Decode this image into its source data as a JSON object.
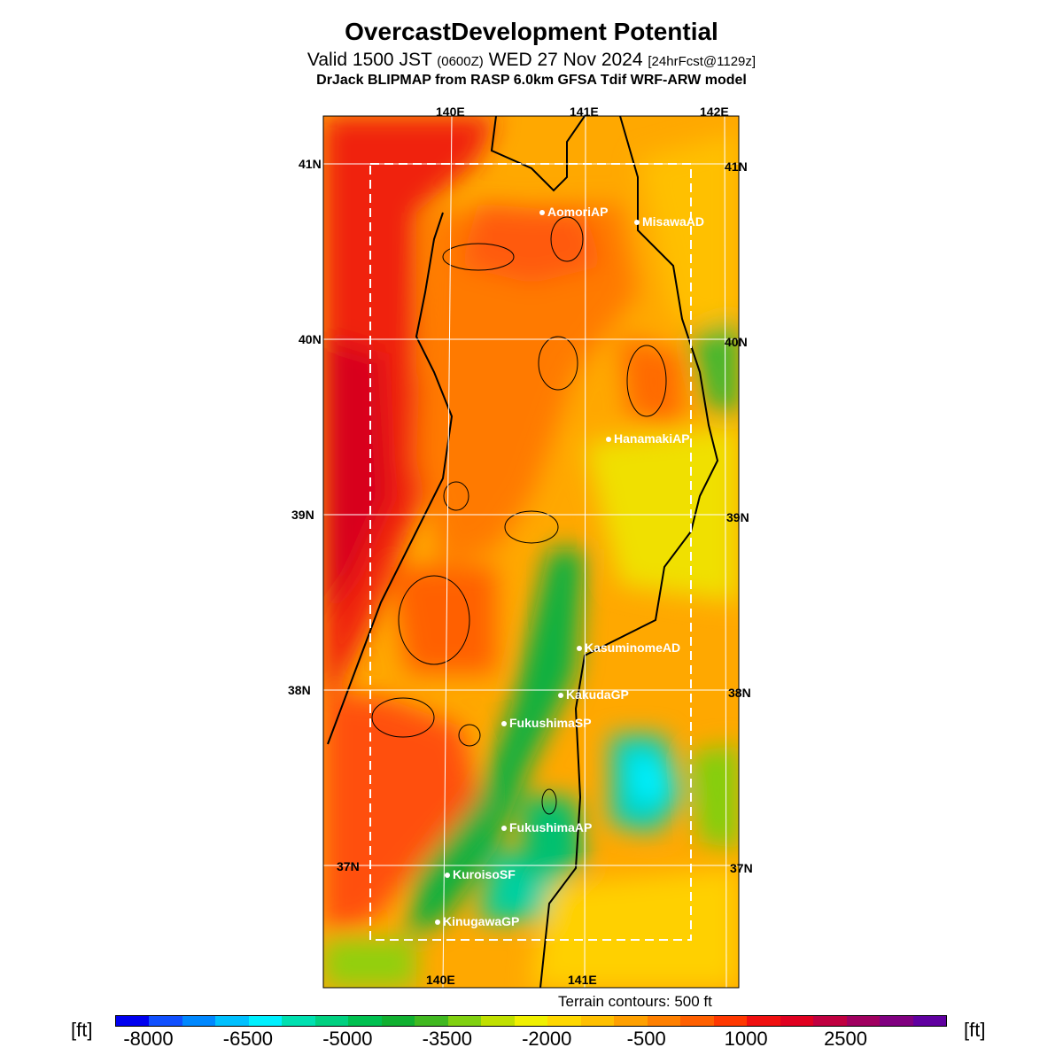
{
  "title": "OvercastDevelopment Potential",
  "subtitle": {
    "prefix": "Valid 1500 JST",
    "utc": "(0600Z)",
    "date": "WED 27 Nov 2024",
    "fcst": "[24hrFcst@1129z]"
  },
  "model_line": "DrJack BLIPMAP from RASP 6.0km GFSA Tdif WRF-ARW model",
  "axes": {
    "lon_top": [
      "140E",
      "141E",
      "142E"
    ],
    "lon_bottom": [
      "140E",
      "141E"
    ],
    "lat_left": [
      "41N",
      "40N",
      "39N",
      "38N",
      "37N"
    ],
    "lat_right": [
      "41N",
      "40N",
      "39N",
      "38N",
      "37N"
    ]
  },
  "stations": [
    {
      "name": "AomoriAP"
    },
    {
      "name": "MisawaAD"
    },
    {
      "name": "HanamakiAP"
    },
    {
      "name": "KasuminomeAD"
    },
    {
      "name": "KakudaGP"
    },
    {
      "name": "FukushimaSP"
    },
    {
      "name": "FukushimaAP"
    },
    {
      "name": "KuroisoSF"
    },
    {
      "name": "KinugawaGP"
    }
  ],
  "terrain_note": "Terrain contours: 500 ft",
  "colorbar": {
    "unit_left": "[ft]",
    "unit_right": "[ft]",
    "tick_labels": [
      "-8000",
      "-6500",
      "-5000",
      "-3500",
      "-2000",
      "-500",
      "1000",
      "2500"
    ],
    "colors": [
      "#0000f0",
      "#1050ff",
      "#0088ff",
      "#00c0ff",
      "#00f0ff",
      "#00e0b0",
      "#00d080",
      "#00c050",
      "#10b030",
      "#40b820",
      "#80d010",
      "#c0e000",
      "#f0f000",
      "#ffd800",
      "#ffc000",
      "#ffa000",
      "#ff8000",
      "#ff6000",
      "#ff3800",
      "#f01010",
      "#e00020",
      "#c00040",
      "#a00060",
      "#800080",
      "#6000a0"
    ]
  }
}
